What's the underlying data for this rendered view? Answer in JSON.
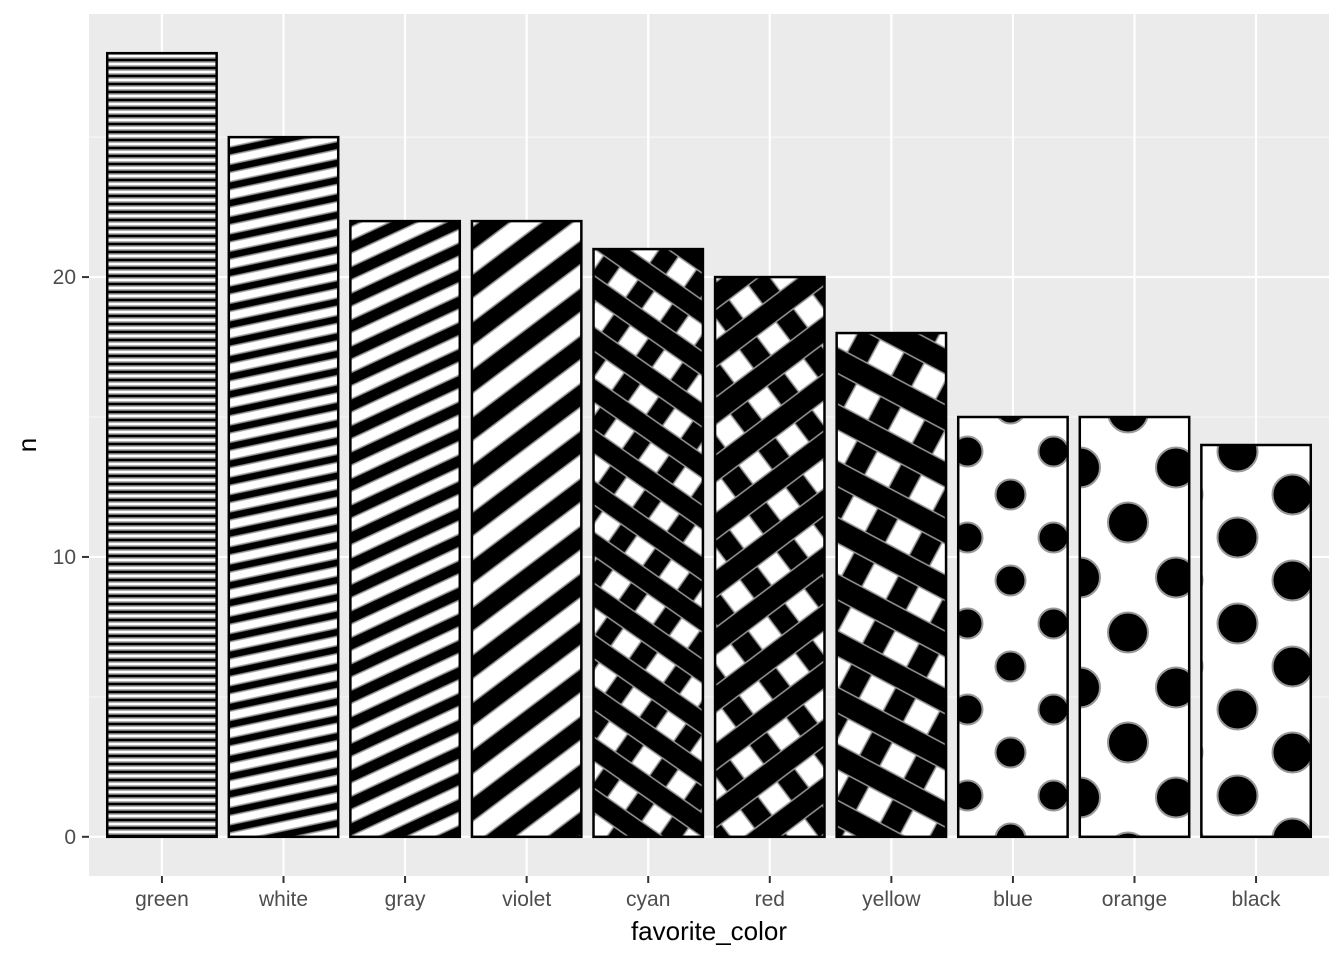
{
  "chart_data": {
    "type": "bar",
    "xlabel": "favorite_color",
    "ylabel": "n",
    "categories": [
      "green",
      "white",
      "gray",
      "violet",
      "cyan",
      "red",
      "yellow",
      "blue",
      "orange",
      "black"
    ],
    "values": [
      28,
      25,
      22,
      22,
      21,
      20,
      18,
      15,
      15,
      14
    ],
    "patterns": [
      "stripe-horizontal",
      "stripe-shallow",
      "stripe-medium",
      "stripe-steep",
      "crosshatch",
      "crosshatch",
      "crosshatch",
      "polka-dot",
      "polka-dot",
      "polka-dot"
    ],
    "ylim": [
      -1.4,
      29.4
    ],
    "y_ticks": [
      0,
      10,
      20
    ],
    "y_tick_labels": [
      "0",
      "10",
      "20"
    ],
    "grid": true,
    "legend": "none",
    "colors": {
      "panel_background": "#ebebeb",
      "grid_major": "#ffffff",
      "bar_fill": "#ffffff",
      "pattern_fill": "#000000",
      "pattern_outline": "#999999",
      "bar_outline": "#000000"
    }
  }
}
